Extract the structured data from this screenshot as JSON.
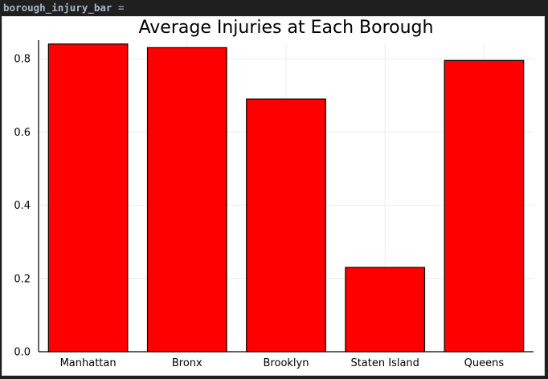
{
  "cell": {
    "variable_name": "borough_injury_bar",
    "assign_symbol": "="
  },
  "colors": {
    "bar_fill": "#ff0000",
    "bar_stroke": "#000000",
    "grid": "#ececec",
    "axis": "#000000",
    "background": "#ffffff",
    "page_background": "#1f1f1f"
  },
  "chart_data": {
    "type": "bar",
    "title": "Average Injuries at Each Borough",
    "xlabel": "",
    "ylabel": "",
    "categories": [
      "Manhattan",
      "Bronx",
      "Brooklyn",
      "Staten Island",
      "Queens"
    ],
    "values": [
      0.84,
      0.83,
      0.69,
      0.23,
      0.795
    ],
    "ylim": [
      0,
      0.8418
    ],
    "yticks": [
      0.0,
      0.2,
      0.4,
      0.6,
      0.8
    ],
    "ytick_labels": [
      "0.0",
      "0.2",
      "0.4",
      "0.6",
      "0.8"
    ],
    "grid": true,
    "legend": "none"
  }
}
